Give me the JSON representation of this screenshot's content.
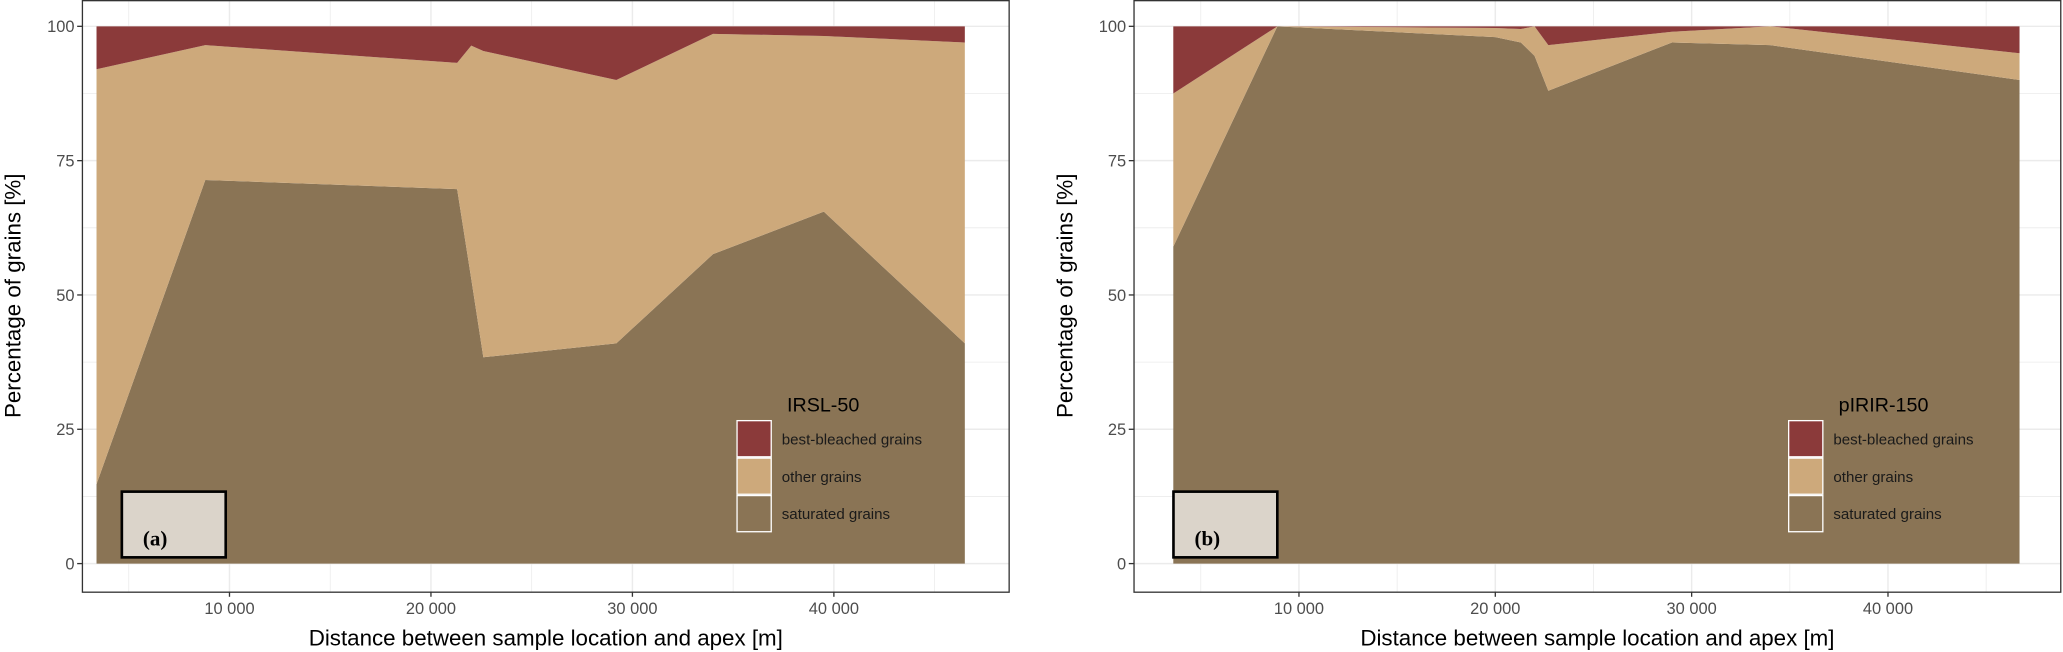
{
  "colors": {
    "best_bleached": "#8b3a3a",
    "other": "#cda97b",
    "saturated": "#8a7455",
    "label_box": "#dbd4ca",
    "grid": "#ebebeb"
  },
  "chart_data": [
    {
      "type": "area",
      "stacked": true,
      "panel_label": "(a)",
      "legend_title": "IRSL-50",
      "legend_placement": "bottom-right",
      "xlabel": "Distance between sample location and apex [m]",
      "ylabel": "Percentage of grains [%]",
      "xlim": [
        2700,
        48700
      ],
      "ylim": [
        -5.2,
        104.9
      ],
      "grid": true,
      "x_ticks": [
        {
          "value": 10000,
          "label": "10 000"
        },
        {
          "value": 20000,
          "label": "20 000"
        },
        {
          "value": 30000,
          "label": "30 000"
        },
        {
          "value": 40000,
          "label": "40 000"
        }
      ],
      "y_ticks": [
        {
          "value": 0,
          "label": "0"
        },
        {
          "value": 25,
          "label": "25"
        },
        {
          "value": 50,
          "label": "50"
        },
        {
          "value": 75,
          "label": "75"
        },
        {
          "value": 100,
          "label": "100"
        }
      ],
      "x": [
        3400,
        8800,
        21300,
        22000,
        22600,
        29200,
        34000,
        39500,
        46500
      ],
      "series": [
        {
          "name": "saturated grains",
          "key": "saturated",
          "values": [
            14.8,
            71.4,
            69.7,
            53.0,
            38.4,
            41.0,
            57.6,
            65.5,
            41.0
          ]
        },
        {
          "name": "other grains",
          "key": "other",
          "values": [
            77.2,
            25.1,
            23.5,
            43.4,
            57.0,
            49.0,
            41.0,
            32.7,
            56.0
          ]
        },
        {
          "name": "best-bleached grains",
          "key": "best_bleached",
          "values": [
            8.0,
            3.5,
            6.8,
            3.6,
            4.6,
            10.0,
            1.4,
            1.8,
            3.0
          ]
        }
      ]
    },
    {
      "type": "area",
      "stacked": true,
      "panel_label": "(b)",
      "legend_title": "pIRIR-150",
      "legend_placement": "bottom-right",
      "xlabel": "Distance between sample location and apex [m]",
      "ylabel": "Percentage of grains [%]",
      "xlim": [
        1600,
        48800
      ],
      "ylim": [
        -5.2,
        104.9
      ],
      "grid": true,
      "x_ticks": [
        {
          "value": 10000,
          "label": "10 000"
        },
        {
          "value": 20000,
          "label": "20 000"
        },
        {
          "value": 30000,
          "label": "30 000"
        },
        {
          "value": 40000,
          "label": "40 000"
        }
      ],
      "y_ticks": [
        {
          "value": 0,
          "label": "0"
        },
        {
          "value": 25,
          "label": "25"
        },
        {
          "value": 50,
          "label": "50"
        },
        {
          "value": 75,
          "label": "75"
        },
        {
          "value": 100,
          "label": "100"
        }
      ],
      "x": [
        3600,
        8900,
        20000,
        21300,
        22000,
        22700,
        29000,
        34000,
        46700
      ],
      "series": [
        {
          "name": "saturated grains",
          "key": "saturated",
          "values": [
            59.0,
            100.0,
            98.0,
            97.0,
            94.5,
            88.0,
            97.0,
            96.5,
            90.0
          ]
        },
        {
          "name": "other grains",
          "key": "other",
          "values": [
            28.5,
            0.0,
            1.7,
            2.5,
            5.5,
            8.5,
            2.0,
            3.5,
            5.0
          ]
        },
        {
          "name": "best-bleached grains",
          "key": "best_bleached",
          "values": [
            12.5,
            0.0,
            0.3,
            0.5,
            0.0,
            3.5,
            1.0,
            0.0,
            5.0
          ]
        }
      ]
    }
  ]
}
